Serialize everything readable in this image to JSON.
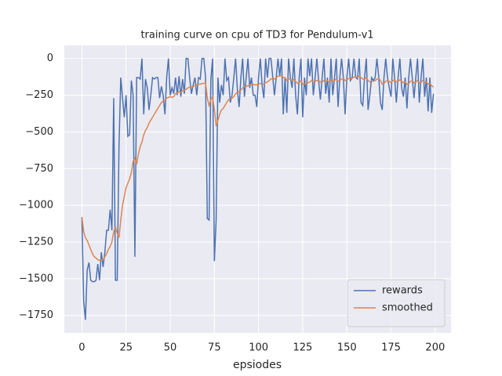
{
  "chart_data": {
    "type": "line",
    "title": "training curve on cpu of TD3 for Pendulum-v1",
    "x_label": "epsiodes",
    "x": [
      0,
      1,
      2,
      3,
      4,
      5,
      6,
      7,
      8,
      9,
      10,
      11,
      12,
      13,
      14,
      15,
      16,
      17,
      18,
      19,
      20,
      21,
      22,
      23,
      24,
      25,
      26,
      27,
      28,
      29,
      30,
      31,
      32,
      33,
      34,
      35,
      36,
      37,
      38,
      39,
      40,
      41,
      42,
      43,
      44,
      45,
      46,
      47,
      48,
      49,
      50,
      51,
      52,
      53,
      54,
      55,
      56,
      57,
      58,
      59,
      60,
      61,
      62,
      63,
      64,
      65,
      66,
      67,
      68,
      69,
      70,
      71,
      72,
      73,
      74,
      75,
      76,
      77,
      78,
      79,
      80,
      81,
      82,
      83,
      84,
      85,
      86,
      87,
      88,
      89,
      90,
      91,
      92,
      93,
      94,
      95,
      96,
      97,
      98,
      99,
      100,
      101,
      102,
      103,
      104,
      105,
      106,
      107,
      108,
      109,
      110,
      111,
      112,
      113,
      114,
      115,
      116,
      117,
      118,
      119,
      120,
      121,
      122,
      123,
      124,
      125,
      126,
      127,
      128,
      129,
      130,
      131,
      132,
      133,
      134,
      135,
      136,
      137,
      138,
      139,
      140,
      141,
      142,
      143,
      144,
      145,
      146,
      147,
      148,
      149,
      150,
      151,
      152,
      153,
      154,
      155,
      156,
      157,
      158,
      159,
      160,
      161,
      162,
      163,
      164,
      165,
      166,
      167,
      168,
      169,
      170,
      171,
      172,
      173,
      174,
      175,
      176,
      177,
      178,
      179,
      180,
      181,
      182,
      183,
      184,
      185,
      186,
      187,
      188,
      189,
      190,
      191,
      192,
      193,
      194,
      195,
      196,
      197,
      198,
      199
    ],
    "series": [
      {
        "name": "rewards",
        "color": "#4c72b0",
        "values": [
          -1080,
          -1650,
          -1780,
          -1440,
          -1390,
          -1510,
          -1520,
          -1520,
          -1510,
          -1400,
          -1510,
          -1320,
          -1420,
          -1320,
          -1170,
          -1170,
          -1030,
          -1170,
          -270,
          -1510,
          -1510,
          -600,
          -130,
          -270,
          -400,
          -250,
          -530,
          -520,
          -150,
          -250,
          -1350,
          -130,
          -130,
          -140,
          0,
          -380,
          -140,
          -200,
          -350,
          -250,
          -130,
          -140,
          -130,
          -130,
          -270,
          -190,
          -250,
          -380,
          -130,
          0,
          -250,
          -200,
          -240,
          -130,
          -250,
          -120,
          -260,
          -140,
          -240,
          0,
          0,
          -130,
          -240,
          -180,
          -130,
          -250,
          -130,
          -140,
          0,
          0,
          -130,
          -1090,
          -1100,
          -140,
          0,
          -1380,
          -1100,
          -130,
          -300,
          -180,
          -250,
          0,
          -150,
          -130,
          -300,
          -250,
          -130,
          0,
          -210,
          -330,
          -130,
          0,
          -260,
          -130,
          0,
          -200,
          -130,
          -250,
          -250,
          -330,
          -130,
          0,
          -180,
          -270,
          0,
          -130,
          0,
          0,
          -120,
          -250,
          -130,
          0,
          -120,
          0,
          -380,
          -130,
          -370,
          0,
          -130,
          -200,
          0,
          -250,
          -380,
          -130,
          0,
          -400,
          -130,
          -250,
          0,
          -120,
          0,
          -250,
          -130,
          0,
          -150,
          -280,
          -130,
          0,
          -240,
          -130,
          -300,
          0,
          -250,
          -130,
          0,
          -330,
          -130,
          0,
          -130,
          -380,
          -130,
          0,
          -150,
          -130,
          0,
          -130,
          -140,
          0,
          -300,
          -320,
          -130,
          0,
          -350,
          -250,
          -130,
          -150,
          -130,
          0,
          -120,
          -300,
          -350,
          -130,
          0,
          -130,
          -200,
          -260,
          0,
          -130,
          -300,
          -130,
          0,
          -200,
          -260,
          -130,
          -340,
          -130,
          0,
          -130,
          -270,
          -130,
          0,
          -300,
          -130,
          0,
          -260,
          -130,
          -360,
          -130,
          -370,
          -240
        ]
      },
      {
        "name": "smoothed",
        "color": "#dd8452",
        "values": [
          -1080,
          -1180,
          -1220,
          -1240,
          -1270,
          -1300,
          -1330,
          -1350,
          -1360,
          -1370,
          -1375,
          -1370,
          -1370,
          -1350,
          -1330,
          -1300,
          -1280,
          -1250,
          -1180,
          -1150,
          -1190,
          -1220,
          -1100,
          -1000,
          -940,
          -880,
          -850,
          -820,
          -780,
          -700,
          -680,
          -720,
          -650,
          -600,
          -570,
          -520,
          -490,
          -470,
          -440,
          -420,
          -400,
          -380,
          -360,
          -340,
          -320,
          -300,
          -290,
          -285,
          -270,
          -265,
          -260,
          -265,
          -260,
          -240,
          -235,
          -225,
          -230,
          -220,
          -215,
          -210,
          -200,
          -195,
          -195,
          -190,
          -185,
          -180,
          -175,
          -175,
          -170,
          -170,
          -165,
          -270,
          -320,
          -280,
          -260,
          -350,
          -460,
          -420,
          -380,
          -350,
          -340,
          -320,
          -300,
          -280,
          -275,
          -270,
          -260,
          -240,
          -230,
          -225,
          -215,
          -200,
          -195,
          -190,
          -185,
          -180,
          -175,
          -175,
          -180,
          -180,
          -175,
          -170,
          -170,
          -175,
          -165,
          -160,
          -150,
          -140,
          -135,
          -140,
          -130,
          -120,
          -120,
          -115,
          -130,
          -130,
          -150,
          -140,
          -140,
          -150,
          -145,
          -155,
          -170,
          -165,
          -150,
          -175,
          -170,
          -175,
          -165,
          -160,
          -150,
          -160,
          -155,
          -150,
          -150,
          -160,
          -160,
          -150,
          -155,
          -150,
          -160,
          -150,
          -155,
          -150,
          -140,
          -155,
          -150,
          -140,
          -135,
          -150,
          -145,
          -135,
          -135,
          -135,
          -125,
          -125,
          -130,
          -120,
          -130,
          -140,
          -140,
          -130,
          -150,
          -160,
          -155,
          -155,
          -150,
          -140,
          -135,
          -150,
          -175,
          -170,
          -155,
          -150,
          -155,
          -165,
          -150,
          -145,
          -160,
          -155,
          -145,
          -155,
          -165,
          -160,
          -175,
          -170,
          -155,
          -150,
          -165,
          -160,
          -150,
          -165,
          -160,
          -150,
          -160,
          -160,
          -175,
          -170,
          -185,
          -195
        ]
      }
    ],
    "xlim": [
      -9.95,
      208.95
    ],
    "xticks": [
      0,
      25,
      50,
      75,
      100,
      125,
      150,
      175,
      200
    ],
    "ylim": [
      -1869,
      89
    ],
    "yticks": [
      0,
      {
        "value": -250,
        "label": "−250"
      },
      {
        "value": -500,
        "label": "−500"
      },
      {
        "value": -750,
        "label": "−750"
      },
      {
        "value": -1000,
        "label": "−1000"
      },
      {
        "value": -1250,
        "label": "−1250"
      },
      {
        "value": -1500,
        "label": "−1500"
      },
      {
        "value": -1750,
        "label": "−1750"
      }
    ],
    "grid": true,
    "legend": "lower right"
  }
}
